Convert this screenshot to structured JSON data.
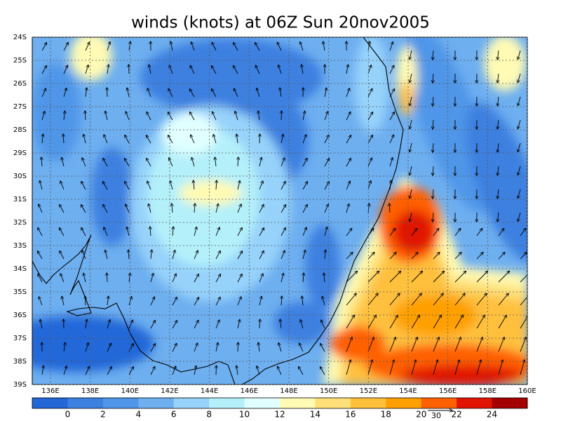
{
  "title": "winds (knots) at 06Z Sun 20nov2005",
  "lat_labels": [
    "24S",
    "25S",
    "26S",
    "27S",
    "28S",
    "29S",
    "30S",
    "31S",
    "32S",
    "33S",
    "34S",
    "35S",
    "36S",
    "37S",
    "38S",
    "39S"
  ],
  "lon_labels": [
    "136E",
    "138E",
    "140E",
    "142E",
    "144E",
    "146E",
    "148E",
    "150E",
    "152E",
    "154E",
    "156E",
    "158E",
    "160E"
  ],
  "colorbar": {
    "levels": [
      0,
      2,
      4,
      6,
      8,
      10,
      12,
      14,
      16,
      18,
      20,
      22,
      24
    ],
    "colors": [
      "#2468d8",
      "#3c80e0",
      "#5096e8",
      "#6eaff0",
      "#96d2fa",
      "#b4f0fa",
      "#e1ffff",
      "#fffab4",
      "#ffe078",
      "#ffc03c",
      "#ffa000",
      "#ff6000",
      "#e11400",
      "#a50000"
    ]
  },
  "reference_vector": "30"
}
